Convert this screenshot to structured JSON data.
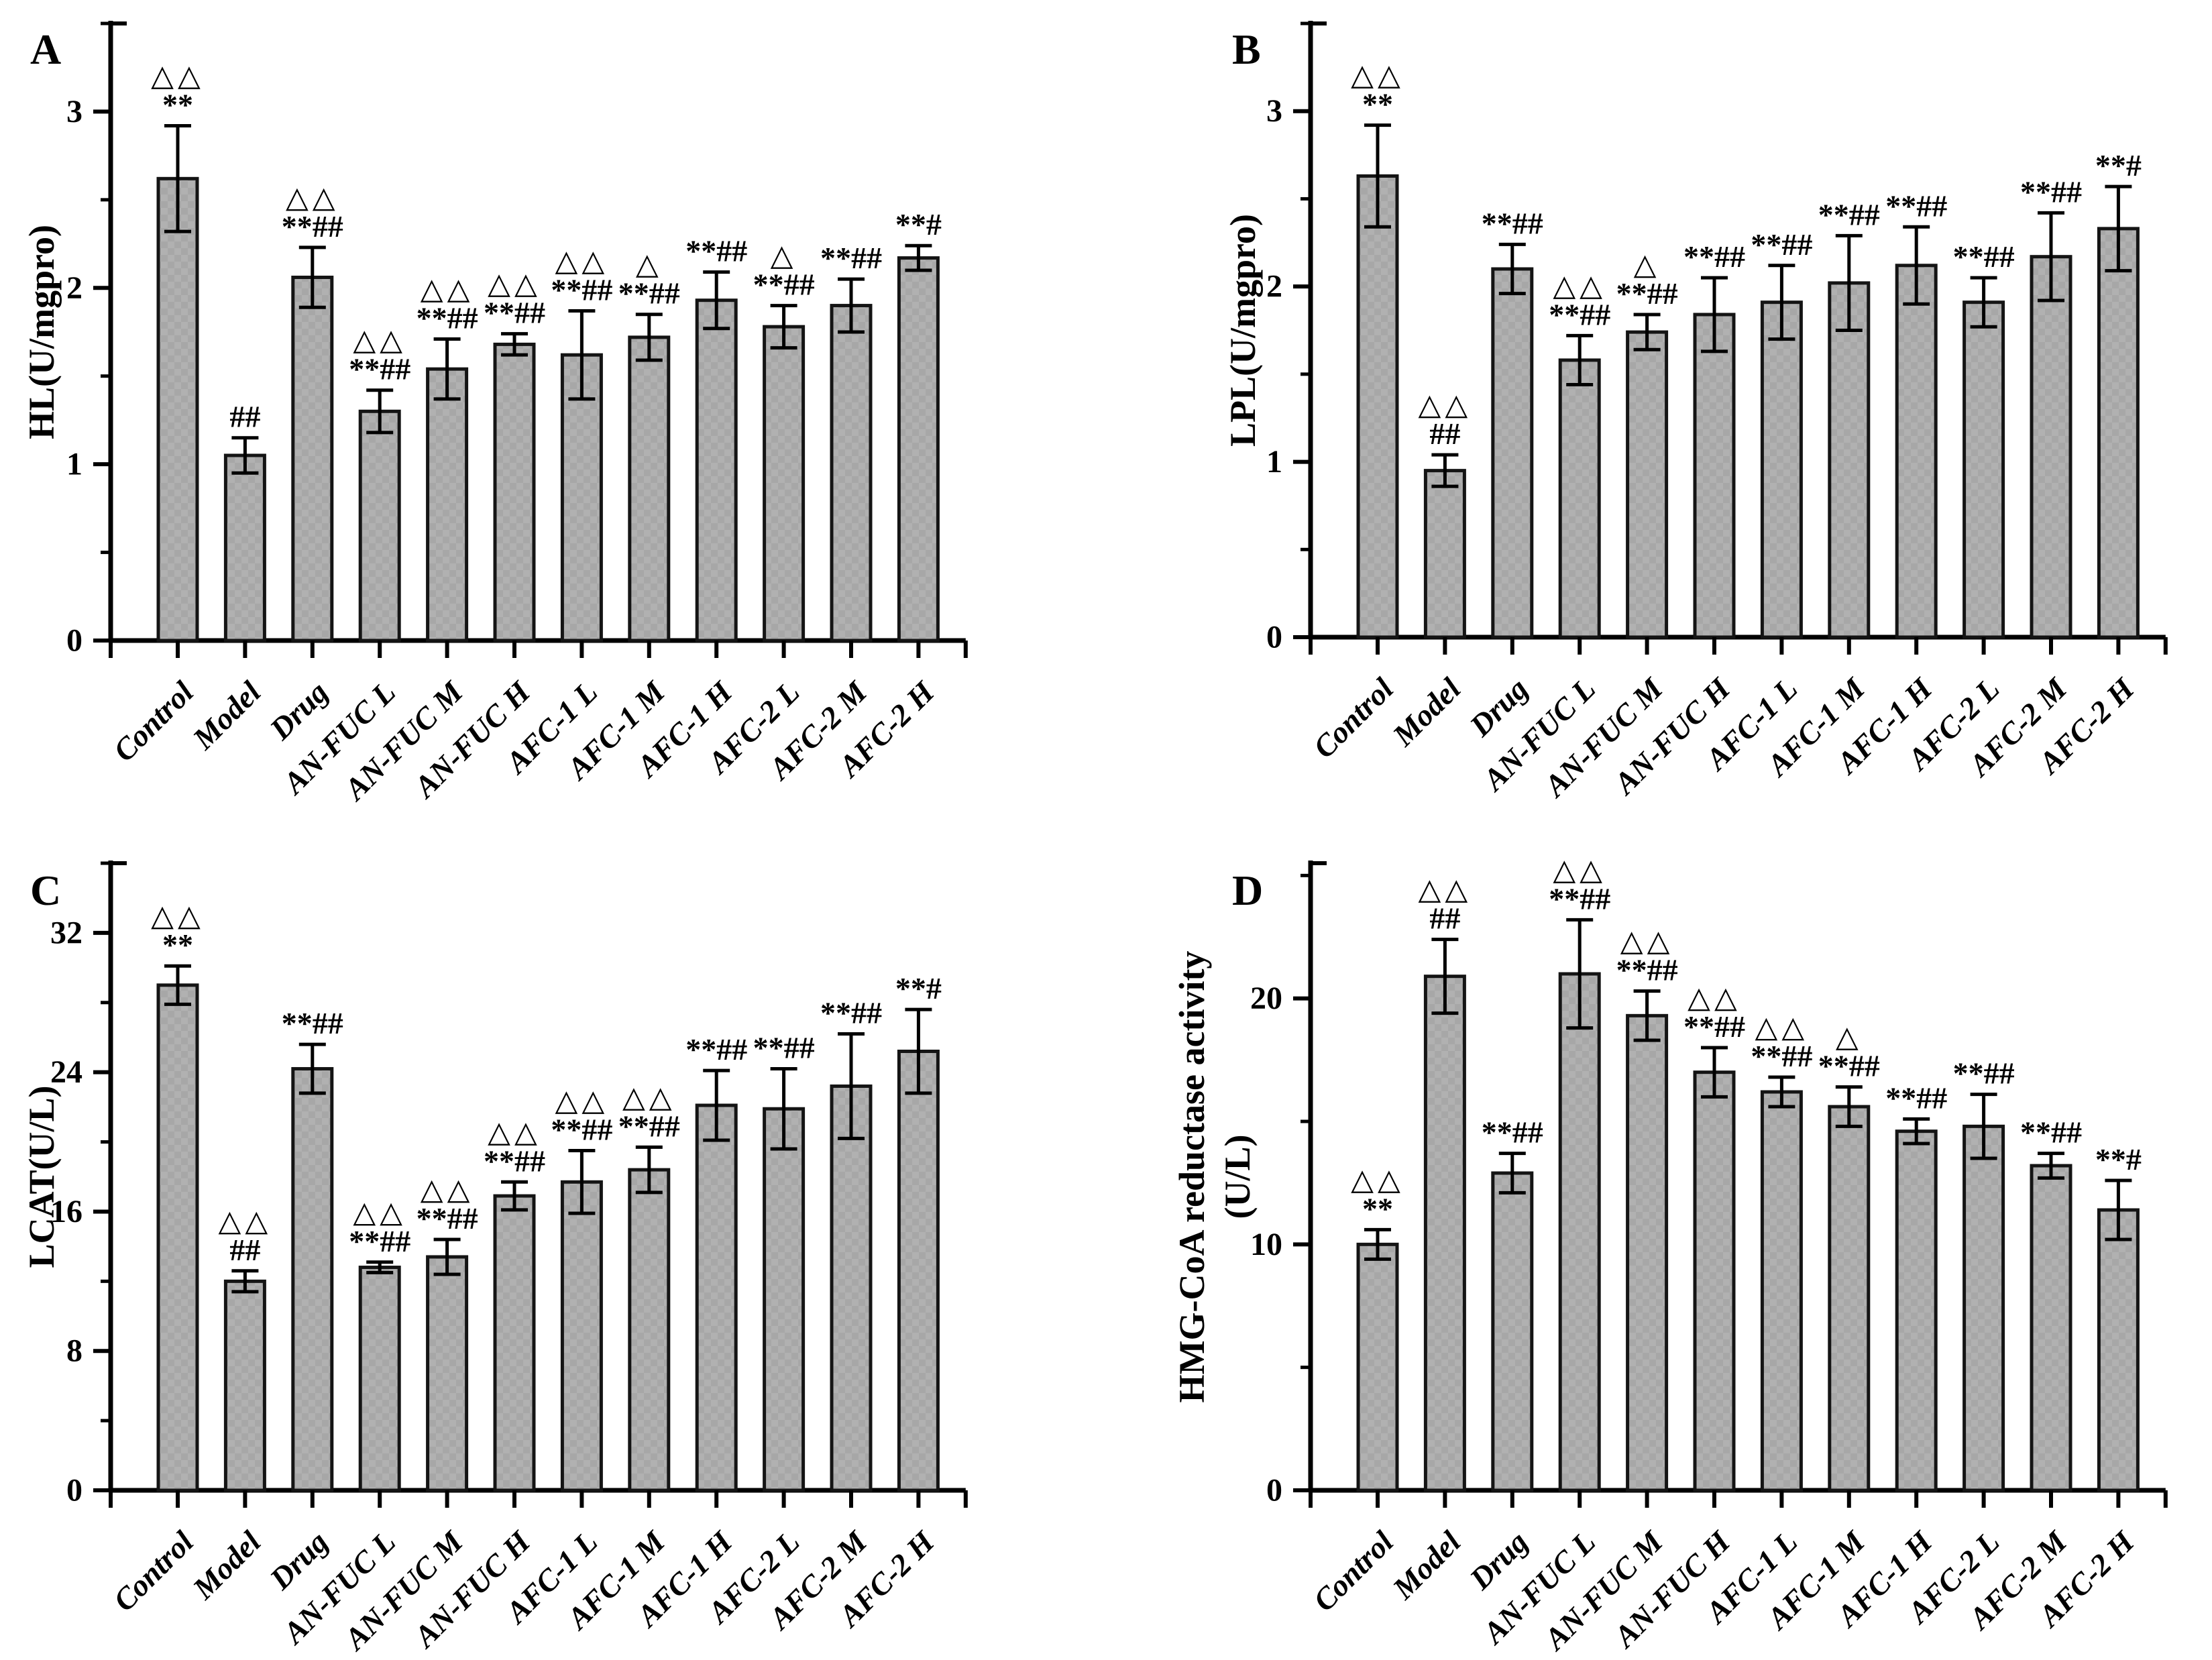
{
  "figure": {
    "background": "#ffffff",
    "bar_fill": "#b1b1b1",
    "bar_fill_check": "#a7a7a7",
    "bar_stroke": "#141414",
    "axis_color": "#000000",
    "annotation_color": "#000000"
  },
  "chart_data": [
    {
      "type": "bar",
      "panel_label": "A",
      "ylabel_lines": [
        "HL(U/mgpro)"
      ],
      "categories": [
        "Control",
        "Model",
        "Drug",
        "AN-FUC L",
        "AN-FUC M",
        "AN-FUC H",
        "AFC-1 L",
        "AFC-1 M",
        "AFC-1 H",
        "AFC-2 L",
        "AFC-2 M",
        "AFC-2 H"
      ],
      "values": [
        2.62,
        1.05,
        2.06,
        1.3,
        1.54,
        1.68,
        1.62,
        1.72,
        1.93,
        1.78,
        1.9,
        2.17
      ],
      "errors": [
        0.3,
        0.1,
        0.17,
        0.12,
        0.17,
        0.06,
        0.25,
        0.13,
        0.16,
        0.12,
        0.15,
        0.07
      ],
      "annotations_triangles": [
        "△△",
        "",
        "△△",
        "△△",
        "△△",
        "△△",
        "△△",
        "△",
        "",
        "△",
        "",
        ""
      ],
      "annotations_significance": [
        "**",
        "##",
        "**##",
        "**##",
        "**##",
        "**##",
        "**##",
        "**##",
        "**##",
        "**##",
        "**##",
        "**#"
      ],
      "ylim": [
        0,
        3.5
      ],
      "yticks": [
        0,
        1,
        2,
        3
      ],
      "minor_tick_step": 0.5,
      "grid": false,
      "legend": "none"
    },
    {
      "type": "bar",
      "panel_label": "B",
      "ylabel_lines": [
        "LPL(U/mgpro)"
      ],
      "categories": [
        "Control",
        "Model",
        "Drug",
        "AN-FUC L",
        "AN-FUC M",
        "AN-FUC H",
        "AFC-1 L",
        "AFC-1 M",
        "AFC-1 H",
        "AFC-2 L",
        "AFC-2 M",
        "AFC-2 H"
      ],
      "values": [
        2.63,
        0.95,
        2.1,
        1.58,
        1.74,
        1.84,
        1.91,
        2.02,
        2.12,
        1.91,
        2.17,
        2.33
      ],
      "errors": [
        0.29,
        0.09,
        0.14,
        0.14,
        0.1,
        0.21,
        0.21,
        0.27,
        0.22,
        0.14,
        0.25,
        0.24
      ],
      "annotations_triangles": [
        "△△",
        "△△",
        "",
        "△△",
        "△",
        "",
        "",
        "",
        "",
        "",
        "",
        ""
      ],
      "annotations_significance": [
        "**",
        "##",
        "**##",
        "**##",
        "**##",
        "**##",
        "**##",
        "**##",
        "**##",
        "**##",
        "**##",
        "**#"
      ],
      "ylim": [
        0,
        3.5
      ],
      "yticks": [
        0,
        1,
        2,
        3
      ],
      "minor_tick_step": 0.5,
      "grid": false,
      "legend": "none"
    },
    {
      "type": "bar",
      "panel_label": "C",
      "ylabel_lines": [
        "LCAT(U/L)"
      ],
      "categories": [
        "Control",
        "Model",
        "Drug",
        "AN-FUC L",
        "AN-FUC M",
        "AN-FUC H",
        "AFC-1 L",
        "AFC-1 M",
        "AFC-1 H",
        "AFC-2 L",
        "AFC-2 M",
        "AFC-2 H"
      ],
      "values": [
        29.0,
        12.0,
        24.2,
        12.8,
        13.4,
        16.9,
        17.7,
        18.4,
        22.1,
        21.9,
        23.2,
        25.2
      ],
      "errors": [
        1.1,
        0.6,
        1.4,
        0.3,
        1.0,
        0.8,
        1.8,
        1.3,
        2.0,
        2.3,
        3.0,
        2.4
      ],
      "annotations_triangles": [
        "△△",
        "△△",
        "",
        "△△",
        "△△",
        "△△",
        "△△",
        "△△",
        "",
        "",
        "",
        ""
      ],
      "annotations_significance": [
        "**",
        "##",
        "**##",
        "**##",
        "**##",
        "**##",
        "**##",
        "**##",
        "**##",
        "**##",
        "**##",
        "**#"
      ],
      "ylim": [
        0,
        36
      ],
      "yticks": [
        0,
        8,
        16,
        24,
        32
      ],
      "minor_tick_step": 4,
      "grid": false,
      "legend": "none"
    },
    {
      "type": "bar",
      "panel_label": "D",
      "ylabel_lines": [
        "HMG-CoA reductase activity",
        "(U/L)"
      ],
      "categories": [
        "Control",
        "Model",
        "Drug",
        "AN-FUC L",
        "AN-FUC M",
        "AN-FUC H",
        "AFC-1 L",
        "AFC-1 M",
        "AFC-1 H",
        "AFC-2 L",
        "AFC-2 M",
        "AFC-2 H"
      ],
      "values": [
        10.0,
        20.9,
        12.9,
        21.0,
        19.3,
        17.0,
        16.2,
        15.6,
        14.6,
        14.8,
        13.2,
        11.4
      ],
      "errors": [
        0.6,
        1.5,
        0.8,
        2.2,
        1.0,
        1.0,
        0.6,
        0.8,
        0.5,
        1.3,
        0.5,
        1.2
      ],
      "annotations_triangles": [
        "△△",
        "△△",
        "",
        "△△",
        "△△",
        "△△",
        "△△",
        "△",
        "",
        "",
        "",
        ""
      ],
      "annotations_significance": [
        "**",
        "##",
        "**##",
        "**##",
        "**##",
        "**##",
        "**##",
        "**##",
        "**##",
        "**##",
        "**##",
        "**#"
      ],
      "ylim": [
        0,
        25.5
      ],
      "yticks": [
        0,
        10,
        20
      ],
      "minor_tick_step": 5,
      "grid": false,
      "legend": "none"
    }
  ]
}
